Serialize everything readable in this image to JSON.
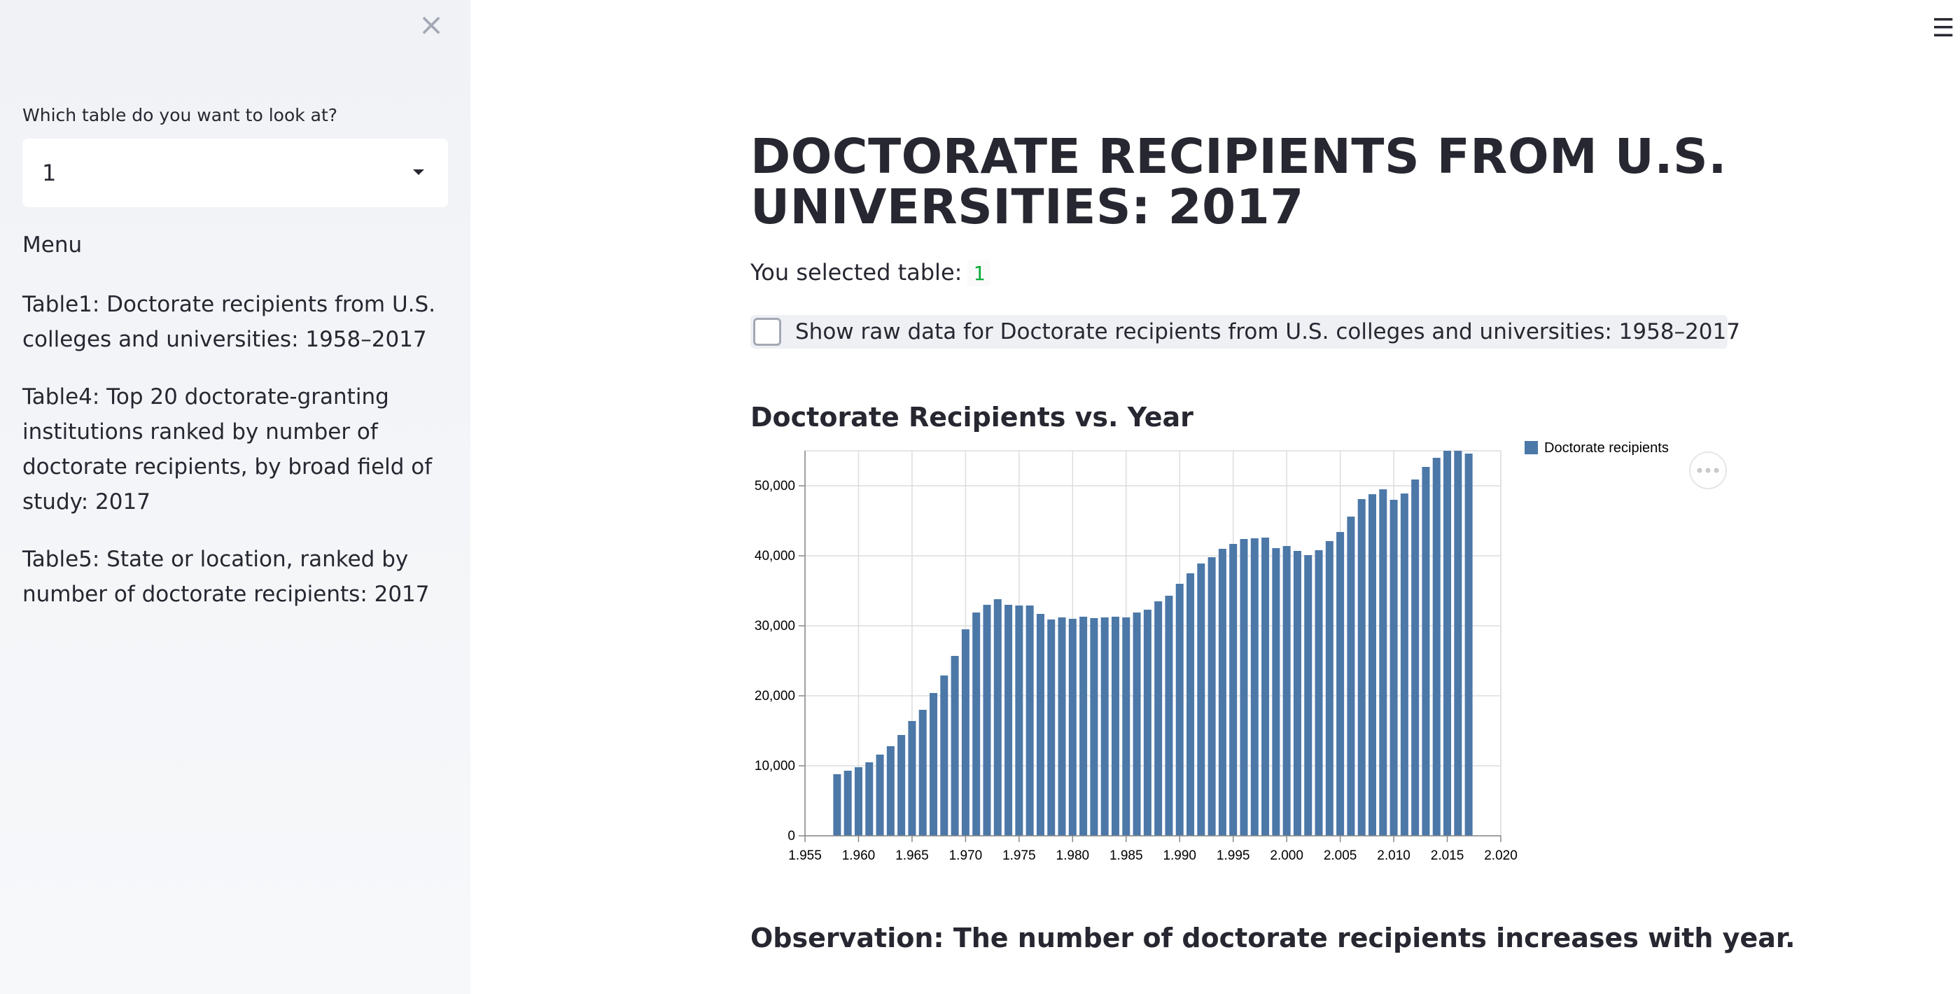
{
  "sidebar": {
    "select_label": "Which table do you want to look at?",
    "select_value": "1",
    "menu_title": "Menu",
    "items": [
      {
        "label": "Table1: Doctorate recipients from U.S. colleges and universities: 1958–2017"
      },
      {
        "label": "Table4: Top 20 doctorate-granting institutions ranked by number of doctorate recipients, by broad field of study: 2017"
      },
      {
        "label": "Table5: State or location, ranked by number of doctorate recipients: 2017"
      }
    ]
  },
  "main": {
    "title": "DOCTORATE RECIPIENTS FROM U.S. UNIVERSITIES: 2017",
    "selected_prefix": "You selected table:",
    "selected_value": "1",
    "checkbox_label": "Show raw data for Doctorate recipients from U.S. colleges and universities: 1958–2017",
    "chart_heading": "Doctorate Recipients vs. Year",
    "observation": "Observation: The number of doctorate recipients increases with year."
  },
  "colors": {
    "bar": "#4c78a8",
    "code_text": "#09ab3b",
    "sidebar_bg": "#f0f2f6",
    "checkbox_row_bg": "#eef0f4"
  },
  "icons": {
    "close": "close-icon",
    "hamburger": "hamburger-menu-icon",
    "caret": "chevron-down-icon",
    "more": "more-horizontal-icon"
  },
  "chart_data": {
    "type": "bar",
    "title": "",
    "xlabel": "",
    "ylabel": "",
    "xlim": [
      1955,
      2020
    ],
    "ylim": [
      0,
      55000
    ],
    "x_ticks": [
      "1,955",
      "1,960",
      "1,965",
      "1,970",
      "1,975",
      "1,980",
      "1,985",
      "1,990",
      "1,995",
      "2,000",
      "2,005",
      "2,010",
      "2,015",
      "2,020"
    ],
    "y_ticks": [
      "0",
      "10,000",
      "20,000",
      "30,000",
      "40,000",
      "50,000"
    ],
    "grid": true,
    "legend_position": "top-right",
    "series": [
      {
        "name": "Doctorate recipients",
        "x": [
          1958,
          1959,
          1960,
          1961,
          1962,
          1963,
          1964,
          1965,
          1966,
          1967,
          1968,
          1969,
          1970,
          1971,
          1972,
          1973,
          1974,
          1975,
          1976,
          1977,
          1978,
          1979,
          1980,
          1981,
          1982,
          1983,
          1984,
          1985,
          1986,
          1987,
          1988,
          1989,
          1990,
          1991,
          1992,
          1993,
          1994,
          1995,
          1996,
          1997,
          1998,
          1999,
          2000,
          2001,
          2002,
          2003,
          2004,
          2005,
          2006,
          2007,
          2008,
          2009,
          2010,
          2011,
          2012,
          2013,
          2014,
          2015,
          2016,
          2017
        ],
        "values": [
          8800,
          9300,
          9800,
          10500,
          11600,
          12800,
          14400,
          16400,
          18000,
          20400,
          22900,
          25700,
          29500,
          31900,
          33000,
          33800,
          33000,
          32900,
          32900,
          31700,
          30900,
          31200,
          31000,
          31300,
          31100,
          31200,
          31300,
          31200,
          31900,
          32300,
          33500,
          34300,
          36000,
          37500,
          38900,
          39800,
          41000,
          41700,
          42400,
          42500,
          42600,
          41100,
          41400,
          40700,
          40100,
          40800,
          42100,
          43400,
          45600,
          48100,
          48800,
          49500,
          48000,
          48900,
          50900,
          52700,
          54000,
          55000,
          55000,
          54600
        ]
      }
    ]
  }
}
